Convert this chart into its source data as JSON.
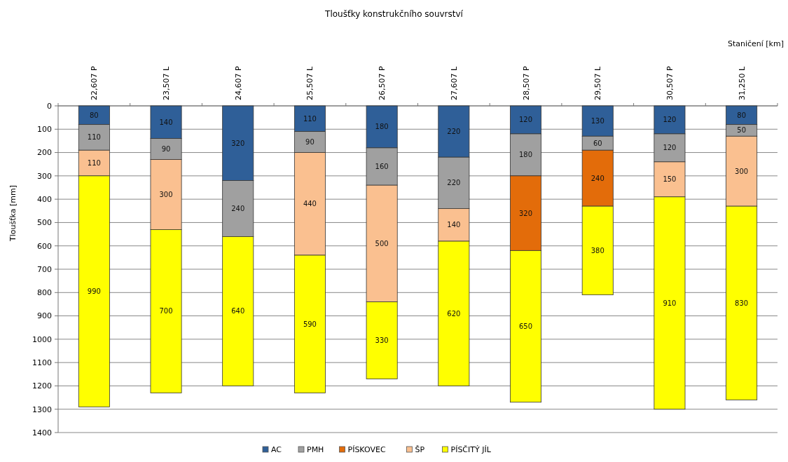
{
  "chart_data": {
    "type": "bar",
    "title": "Tloušťky konstrukčního souvrství",
    "xlabel": "Staničení  [km]",
    "ylabel": "Tloušťka [mm]",
    "categories": [
      "22,607 P",
      "23,507 L",
      "24,607 P",
      "25,507 L",
      "26,507 P",
      "27,607 L",
      "28,507 P",
      "29,507 L",
      "30,507 P",
      "31,250 L"
    ],
    "series": [
      {
        "name": "AC",
        "color": "#2f5f98",
        "values": [
          80,
          140,
          320,
          110,
          180,
          220,
          120,
          130,
          120,
          80
        ]
      },
      {
        "name": "PMH",
        "color": "#a0a0a0",
        "values": [
          110,
          90,
          240,
          90,
          160,
          220,
          180,
          60,
          120,
          50
        ]
      },
      {
        "name": "PÍSKOVEC",
        "color": "#e36c0a",
        "values": [
          null,
          null,
          null,
          null,
          null,
          null,
          320,
          240,
          null,
          null
        ]
      },
      {
        "name": "ŠP",
        "color": "#fac090",
        "values": [
          110,
          300,
          null,
          440,
          500,
          140,
          null,
          null,
          150,
          300
        ]
      },
      {
        "name": "PÍSČITÝ JÍL",
        "color": "#ffff00",
        "values": [
          990,
          700,
          640,
          590,
          330,
          620,
          650,
          380,
          910,
          830
        ]
      }
    ],
    "stacked": true,
    "ylim": [
      1400,
      0
    ],
    "yticks": [
      0,
      100,
      200,
      300,
      400,
      500,
      600,
      700,
      800,
      900,
      1000,
      1100,
      1200,
      1300,
      1400
    ],
    "grid": "y",
    "data_labels": true,
    "legend": "bottom"
  }
}
